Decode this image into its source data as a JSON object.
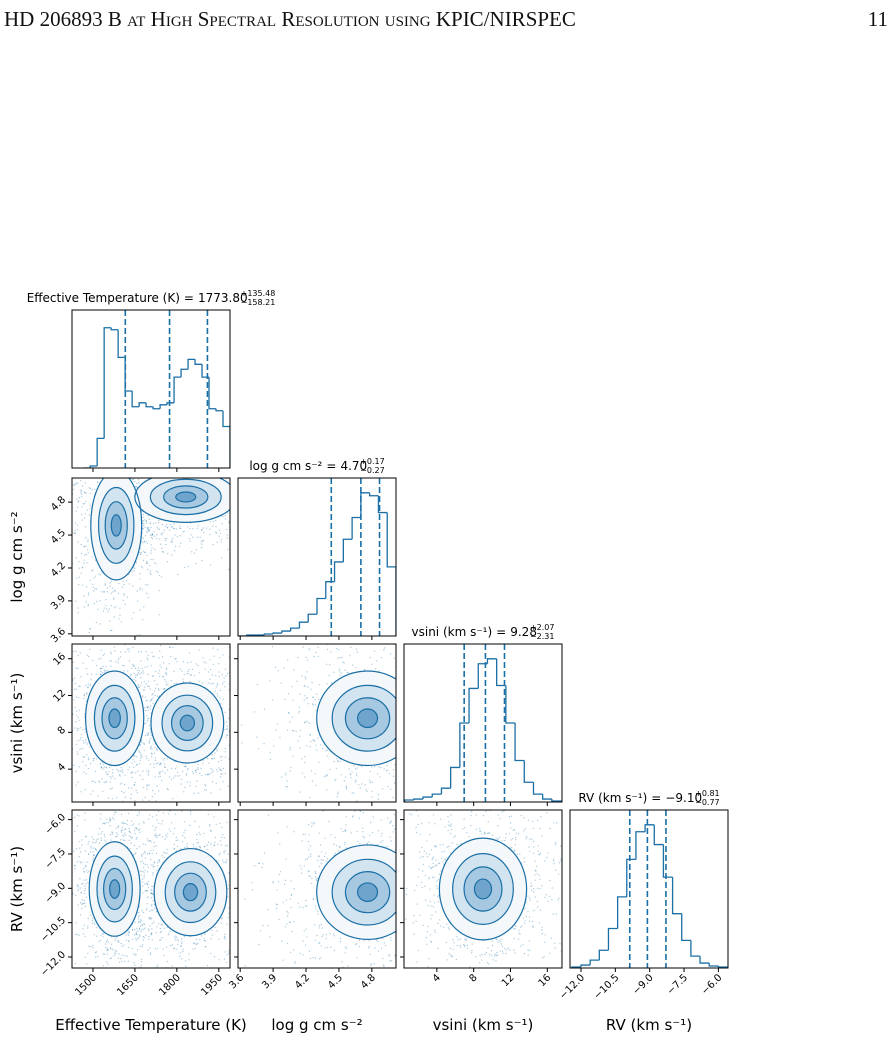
{
  "header": {
    "title": "HD 206893 B at High Spectral Resolution using KPIC/NIRSPEC",
    "page_number": "11"
  },
  "figure": {
    "equals_sign": "=",
    "hist_ylim": [
      0,
      160
    ],
    "color": "#1a6fa6",
    "params": [
      {
        "label": "Effective Temperature (K)",
        "median": {
          "value": 1773.8,
          "label": "1773.80"
        },
        "plus": {
          "value": 135.48,
          "label": "+135.48"
        },
        "minus": {
          "value": 158.21,
          "label": "−158.21"
        },
        "lim": [
          1425,
          1990
        ],
        "ticks": [
          1500,
          1650,
          1800,
          1950
        ],
        "bins": [
          1465,
          1490,
          1515,
          1540,
          1565,
          1590,
          1615,
          1640,
          1665,
          1690,
          1715,
          1740,
          1765,
          1790,
          1815,
          1840,
          1865,
          1890,
          1915,
          1940,
          1965,
          1990
        ],
        "counts": [
          0,
          2,
          30,
          142,
          140,
          112,
          78,
          62,
          66,
          62,
          60,
          64,
          66,
          92,
          100,
          110,
          105,
          92,
          60,
          58,
          42
        ]
      },
      {
        "label": "log g cm s⁻²",
        "median": {
          "value": 4.7,
          "label": "4.70"
        },
        "plus": {
          "value": 0.17,
          "label": "+0.17"
        },
        "minus": {
          "value": 0.27,
          "label": "−0.27"
        },
        "lim": [
          3.58,
          5.02
        ],
        "ticks": [
          3.6,
          3.9,
          4.2,
          4.5,
          4.8
        ],
        "bins": [
          3.58,
          3.66,
          3.74,
          3.82,
          3.9,
          3.98,
          4.06,
          4.14,
          4.22,
          4.3,
          4.38,
          4.46,
          4.54,
          4.62,
          4.7,
          4.78,
          4.86,
          4.94,
          5.02
        ],
        "counts": [
          0,
          1,
          1,
          2,
          3,
          5,
          8,
          14,
          22,
          38,
          55,
          75,
          98,
          120,
          145,
          142,
          125,
          70
        ]
      },
      {
        "label": "vsini (km s⁻¹)",
        "median": {
          "value": 9.28,
          "label": "9.28"
        },
        "plus": {
          "value": 2.07,
          "label": "+2.07"
        },
        "minus": {
          "value": 2.31,
          "label": "−2.31"
        },
        "lim": [
          0.43,
          17.6
        ],
        "ticks": [
          4,
          8,
          12,
          16
        ],
        "bins": [
          0.5,
          1.5,
          2.5,
          3.5,
          4.5,
          5.5,
          6.5,
          7.5,
          8.5,
          9.5,
          10.5,
          11.5,
          12.5,
          13.5,
          14.5,
          15.5,
          16.5,
          17.5
        ],
        "counts": [
          2,
          3,
          5,
          8,
          14,
          35,
          80,
          115,
          140,
          145,
          118,
          80,
          42,
          20,
          8,
          3,
          1
        ]
      },
      {
        "label": "RV (km s⁻¹)",
        "median": {
          "value": -9.1,
          "label": "−9.10"
        },
        "plus": {
          "value": 0.81,
          "label": "+0.81"
        },
        "minus": {
          "value": 0.77,
          "label": "−0.77"
        },
        "lim": [
          -12.48,
          -5.58
        ],
        "ticks": [
          {
            "value": -12,
            "label": "−12.0"
          },
          {
            "value": -10.5,
            "label": "−10.5"
          },
          {
            "value": -9,
            "label": "−9.0"
          },
          {
            "value": -7.5,
            "label": "−7.5"
          },
          {
            "value": -6,
            "label": "−6.0"
          }
        ],
        "bins": [
          -12.4,
          -12.0,
          -11.6,
          -11.2,
          -10.8,
          -10.4,
          -10.0,
          -9.6,
          -9.2,
          -8.8,
          -8.4,
          -8.0,
          -7.6,
          -7.2,
          -6.8,
          -6.4,
          -6.0,
          -5.6
        ],
        "counts": [
          1,
          3,
          8,
          18,
          40,
          72,
          110,
          138,
          145,
          125,
          92,
          55,
          28,
          12,
          5,
          2,
          1
        ]
      }
    ]
  }
}
